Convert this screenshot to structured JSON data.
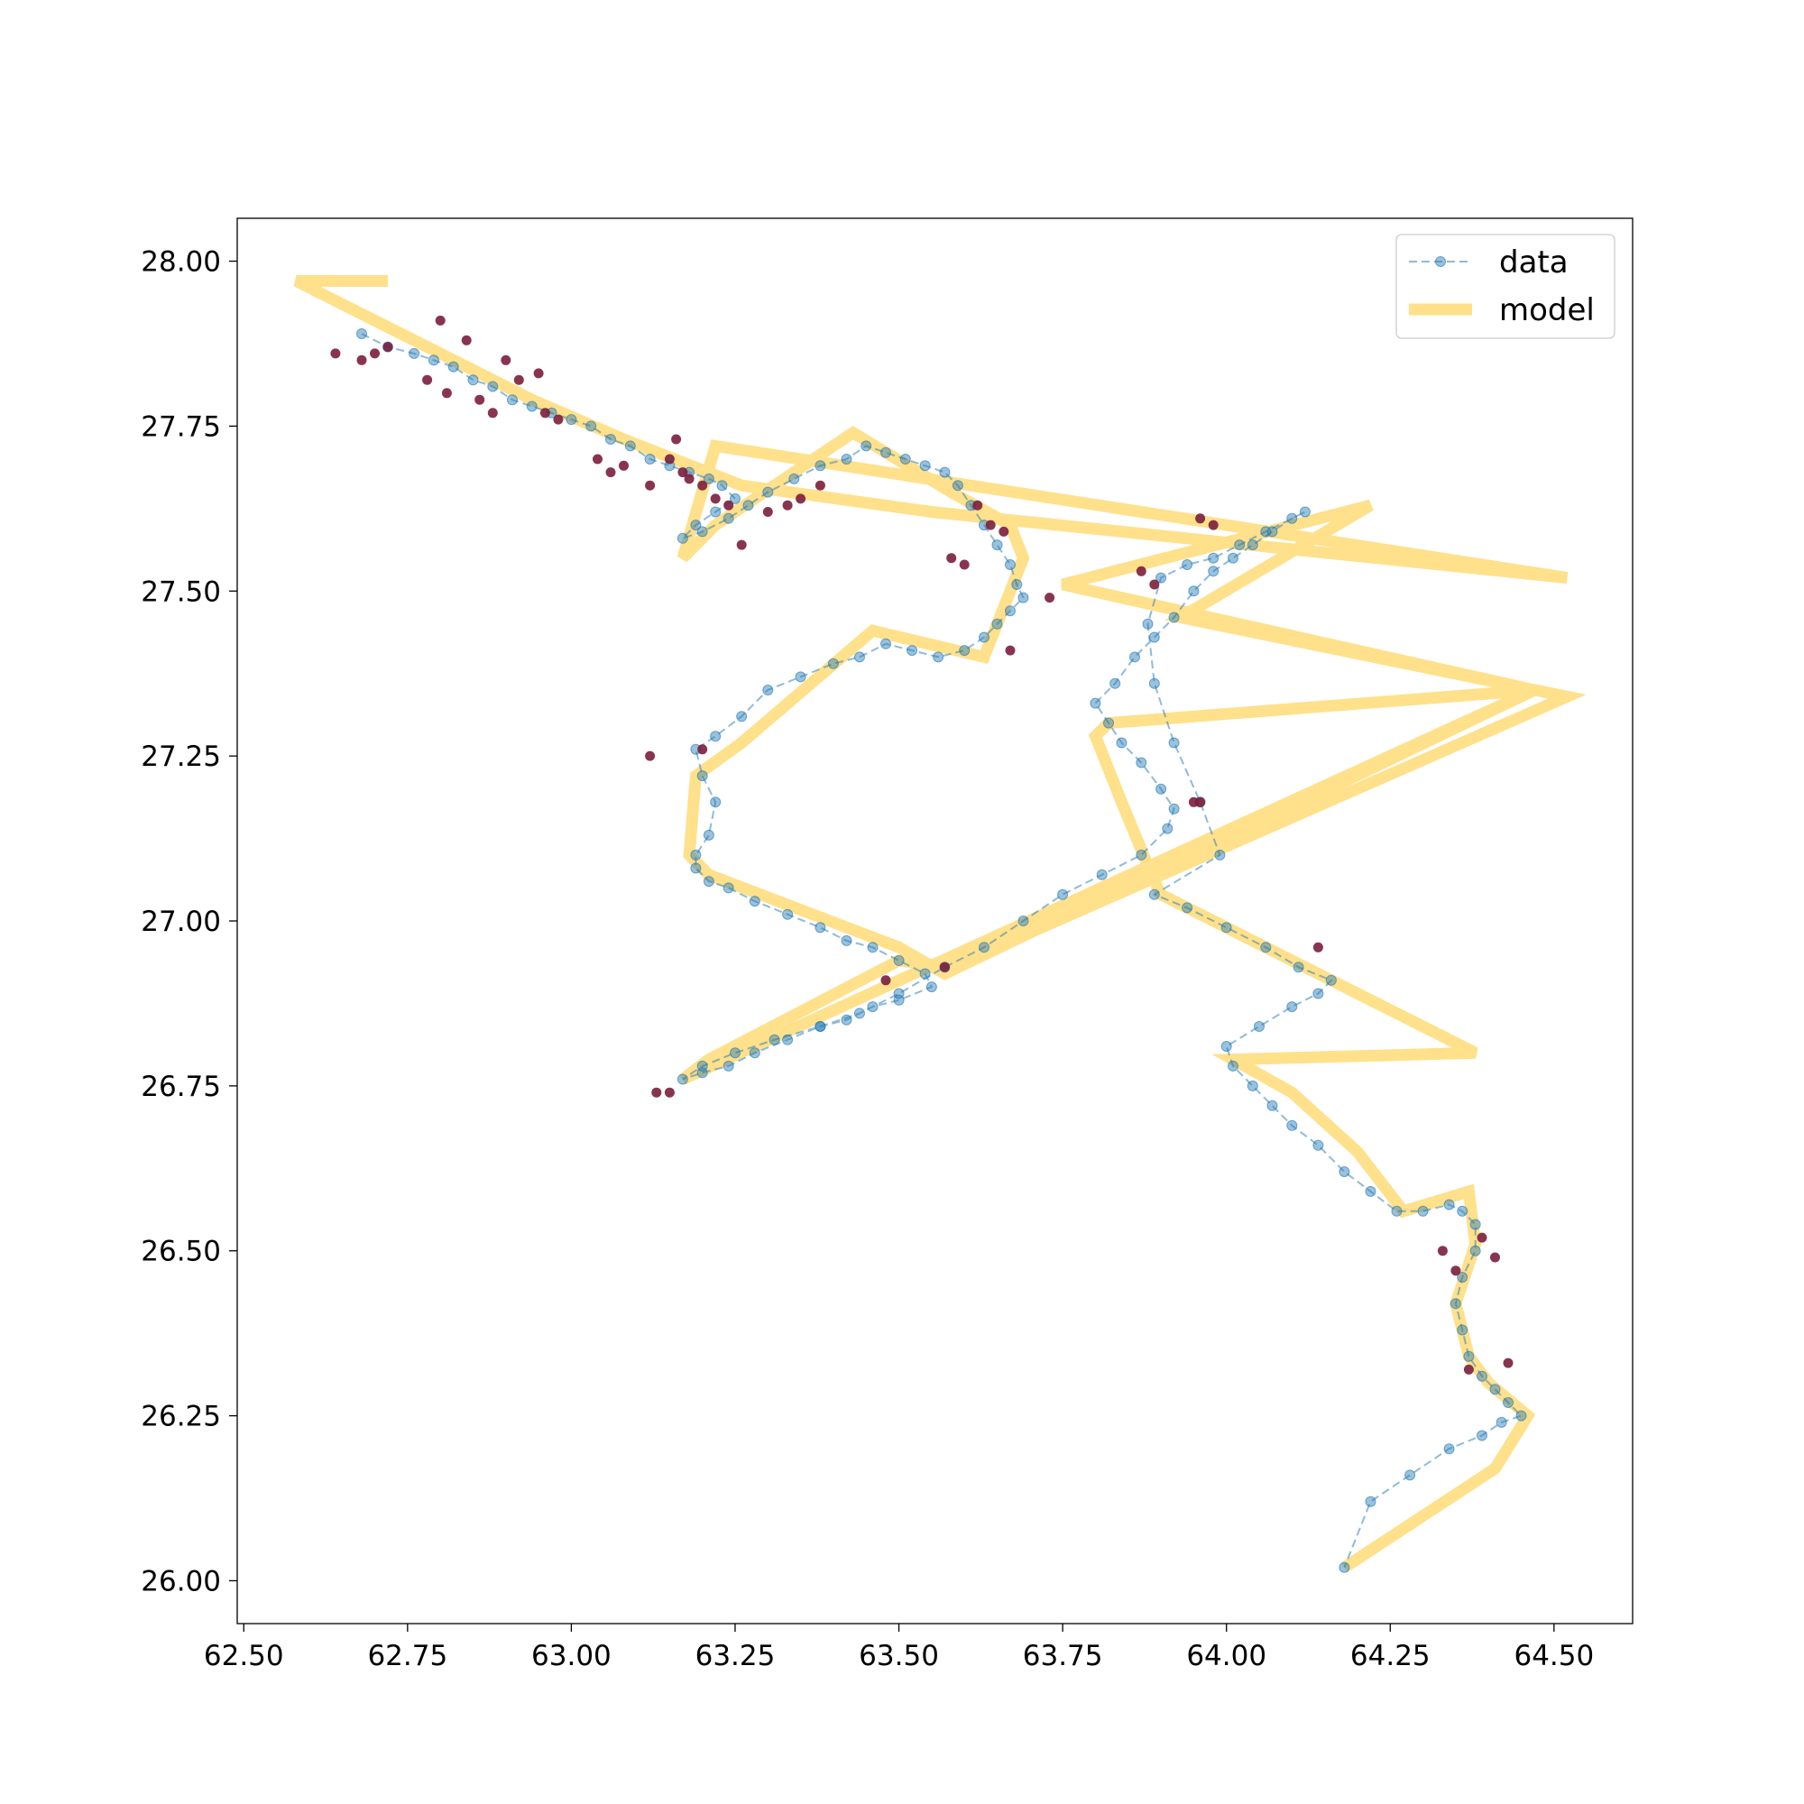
{
  "chart_data": {
    "type": "line",
    "title": "",
    "xlabel": "",
    "ylabel": "",
    "xlim": [
      62.49,
      64.62
    ],
    "ylim": [
      25.935,
      28.065
    ],
    "xticks": [
      "62.50",
      "62.75",
      "63.00",
      "63.25",
      "63.50",
      "63.75",
      "64.00",
      "64.25",
      "64.50"
    ],
    "yticks": [
      "26.00",
      "26.25",
      "26.50",
      "26.75",
      "27.00",
      "27.25",
      "27.50",
      "27.75",
      "28.00"
    ],
    "grid": false,
    "legend": {
      "position": "top-right",
      "entries": [
        "data",
        "model"
      ]
    },
    "colors": {
      "data": "#1f77b4",
      "model": "#ffc72c",
      "outlier": "#7b1e3c"
    },
    "series": [
      {
        "name": "data",
        "style": "dashed-line-with-markers",
        "x": [
          62.68,
          62.72,
          62.76,
          62.79,
          62.82,
          62.85,
          62.88,
          62.91,
          62.94,
          62.97,
          63.0,
          63.03,
          63.06,
          63.09,
          63.12,
          63.15,
          63.18,
          63.21,
          63.23,
          63.25,
          63.22,
          63.19,
          63.17,
          63.2,
          63.24,
          63.27,
          63.3,
          63.34,
          63.38,
          63.42,
          63.45,
          63.48,
          63.51,
          63.54,
          63.57,
          63.59,
          63.61,
          63.63,
          63.65,
          63.67,
          63.68,
          63.69,
          63.67,
          63.65,
          63.63,
          63.6,
          63.56,
          63.52,
          63.48,
          63.44,
          63.4,
          63.35,
          63.3,
          63.26,
          63.22,
          63.19,
          63.2,
          63.22,
          63.21,
          63.19,
          63.19,
          63.21,
          63.24,
          63.28,
          63.33,
          63.38,
          63.42,
          63.46,
          63.5,
          63.54,
          63.55,
          63.5,
          63.46,
          63.42,
          63.38,
          63.33,
          63.28,
          63.24,
          63.2,
          63.17,
          63.2,
          63.25,
          63.31,
          63.38,
          63.44,
          63.5,
          63.57,
          63.63,
          63.69,
          63.75,
          63.81,
          63.87,
          63.91,
          63.92,
          63.9,
          63.87,
          63.84,
          63.82,
          63.8,
          63.83,
          63.86,
          63.89,
          63.92,
          63.95,
          63.98,
          64.01,
          64.04,
          64.07,
          64.1,
          64.12,
          64.06,
          64.02,
          63.98,
          63.94,
          63.9,
          63.88,
          63.89,
          63.92,
          63.96,
          63.99,
          63.89,
          63.94,
          64.0,
          64.06,
          64.11,
          64.16,
          64.14,
          64.1,
          64.05,
          64.0,
          64.01,
          64.04,
          64.07,
          64.1,
          64.14,
          64.18,
          64.22,
          64.26,
          64.3,
          64.34,
          64.36,
          64.38,
          64.38,
          64.36,
          64.35,
          64.36,
          64.37,
          64.39,
          64.41,
          64.43,
          64.45,
          64.42,
          64.39,
          64.34,
          64.28,
          64.22,
          64.18
        ],
        "y": [
          27.89,
          27.87,
          27.86,
          27.85,
          27.84,
          27.82,
          27.81,
          27.79,
          27.78,
          27.77,
          27.76,
          27.75,
          27.73,
          27.72,
          27.7,
          27.69,
          27.68,
          27.67,
          27.66,
          27.64,
          27.62,
          27.6,
          27.58,
          27.59,
          27.61,
          27.63,
          27.65,
          27.67,
          27.69,
          27.7,
          27.72,
          27.71,
          27.7,
          27.69,
          27.68,
          27.66,
          27.63,
          27.6,
          27.57,
          27.54,
          27.51,
          27.49,
          27.47,
          27.45,
          27.43,
          27.41,
          27.4,
          27.41,
          27.42,
          27.4,
          27.39,
          27.37,
          27.35,
          27.31,
          27.28,
          27.26,
          27.22,
          27.18,
          27.13,
          27.1,
          27.08,
          27.06,
          27.05,
          27.03,
          27.01,
          26.99,
          26.97,
          26.96,
          26.94,
          26.92,
          26.9,
          26.88,
          26.87,
          26.85,
          26.84,
          26.82,
          26.8,
          26.78,
          26.77,
          26.76,
          26.78,
          26.8,
          26.82,
          26.84,
          26.86,
          26.89,
          26.93,
          26.96,
          27.0,
          27.04,
          27.07,
          27.1,
          27.14,
          27.17,
          27.2,
          27.24,
          27.27,
          27.3,
          27.33,
          27.36,
          27.4,
          27.43,
          27.46,
          27.5,
          27.53,
          27.55,
          27.57,
          27.59,
          27.61,
          27.62,
          27.59,
          27.57,
          27.55,
          27.54,
          27.52,
          27.45,
          27.36,
          27.27,
          27.18,
          27.1,
          27.04,
          27.02,
          26.99,
          26.96,
          26.93,
          26.91,
          26.89,
          26.87,
          26.84,
          26.81,
          26.78,
          26.75,
          26.72,
          26.69,
          26.66,
          26.62,
          26.59,
          26.56,
          26.56,
          26.57,
          26.56,
          26.54,
          26.5,
          26.46,
          26.42,
          26.38,
          26.34,
          26.31,
          26.29,
          26.27,
          26.25,
          26.24,
          26.22,
          26.2,
          26.16,
          26.12,
          26.02
        ]
      },
      {
        "name": "model",
        "style": "thick-line",
        "x": [
          62.72,
          62.58,
          62.78,
          62.94,
          63.08,
          63.26,
          63.55,
          64.52,
          63.22,
          63.17,
          63.22,
          63.43,
          63.58,
          63.67,
          63.69,
          63.67,
          63.63,
          63.46,
          63.26,
          63.19,
          63.18,
          63.21,
          63.5,
          63.57,
          64.47,
          63.17,
          63.21,
          63.5,
          63.58,
          64.52,
          63.93,
          64.22,
          63.75,
          64.47,
          63.82,
          63.8,
          63.84,
          63.89,
          63.9,
          64.14,
          64.38,
          64.01,
          64.1,
          64.2,
          64.27,
          64.37,
          64.38,
          64.35,
          64.37,
          64.4,
          64.46,
          64.41,
          64.18
        ],
        "y": [
          27.97,
          27.97,
          27.87,
          27.79,
          27.73,
          27.66,
          27.62,
          27.52,
          27.72,
          27.55,
          27.6,
          27.74,
          27.65,
          27.6,
          27.55,
          27.5,
          27.4,
          27.44,
          27.27,
          27.22,
          27.1,
          27.07,
          26.96,
          26.92,
          27.35,
          26.76,
          26.79,
          26.94,
          26.93,
          27.34,
          27.46,
          27.63,
          27.51,
          27.35,
          27.3,
          27.28,
          27.18,
          27.06,
          27.04,
          26.92,
          26.8,
          26.79,
          26.74,
          26.65,
          26.56,
          26.59,
          26.51,
          26.42,
          26.34,
          26.3,
          26.25,
          26.17,
          26.02
        ]
      },
      {
        "name": "",
        "style": "markers-only",
        "x": [
          62.64,
          62.68,
          62.7,
          62.72,
          62.78,
          62.8,
          62.81,
          62.84,
          62.86,
          62.88,
          62.9,
          62.92,
          62.95,
          62.96,
          62.98,
          63.04,
          63.06,
          63.08,
          63.12,
          63.15,
          63.16,
          63.17,
          63.18,
          63.2,
          63.22,
          63.24,
          63.26,
          63.3,
          63.33,
          63.35,
          63.38,
          63.58,
          63.6,
          63.62,
          63.64,
          63.66,
          63.67,
          63.73,
          63.87,
          63.89,
          63.96,
          63.98,
          63.95,
          63.96,
          64.14,
          64.35,
          64.33,
          64.39,
          64.41,
          64.37,
          64.43,
          63.13,
          63.15,
          63.48,
          63.57,
          63.12,
          63.2
        ],
        "y": [
          27.86,
          27.85,
          27.86,
          27.87,
          27.82,
          27.91,
          27.8,
          27.88,
          27.79,
          27.77,
          27.85,
          27.82,
          27.83,
          27.77,
          27.76,
          27.7,
          27.68,
          27.69,
          27.66,
          27.7,
          27.73,
          27.68,
          27.67,
          27.66,
          27.64,
          27.63,
          27.57,
          27.62,
          27.63,
          27.64,
          27.66,
          27.55,
          27.54,
          27.63,
          27.6,
          27.59,
          27.41,
          27.49,
          27.53,
          27.51,
          27.61,
          27.6,
          27.18,
          27.18,
          26.96,
          26.47,
          26.5,
          26.52,
          26.49,
          26.32,
          26.33,
          26.74,
          26.74,
          26.91,
          26.93,
          27.25,
          27.26
        ]
      }
    ]
  }
}
